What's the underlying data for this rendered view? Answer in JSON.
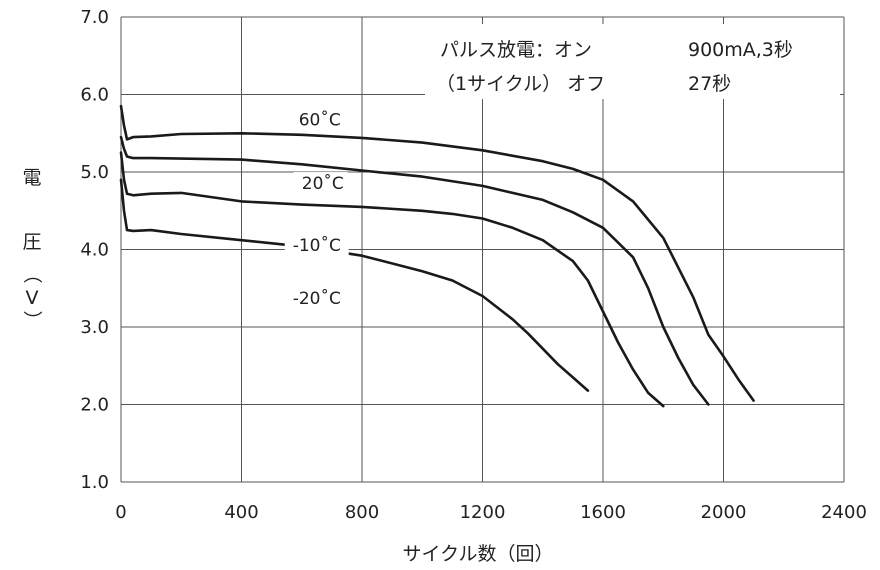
{
  "chart_data": {
    "type": "line",
    "xlabel": "サイクル数（回）",
    "ylabel": "電圧（V）",
    "ylabel_chars": [
      "電",
      "圧",
      "（",
      "V",
      "）"
    ],
    "xlim": [
      0,
      2400
    ],
    "ylim": [
      1.0,
      7.0
    ],
    "x_ticks": [
      "0",
      "400",
      "800",
      "1200",
      "1600",
      "2000",
      "2400"
    ],
    "y_ticks": [
      "1.0",
      "2.0",
      "3.0",
      "4.0",
      "5.0",
      "6.0",
      "7.0"
    ],
    "grid": true,
    "annotation": {
      "line1_label": "パルス放電：オン",
      "line1_value": "900mA,3秒",
      "line2_label": "（1サイクル） オフ",
      "line2_value": "27秒"
    },
    "series": [
      {
        "name": "60˚C",
        "x": [
          0,
          10,
          20,
          40,
          100,
          200,
          400,
          600,
          800,
          1000,
          1200,
          1400,
          1500,
          1600,
          1700,
          1800,
          1900,
          1950,
          2000,
          2050,
          2100
        ],
        "y": [
          5.85,
          5.6,
          5.42,
          5.45,
          5.46,
          5.49,
          5.5,
          5.48,
          5.44,
          5.38,
          5.28,
          5.14,
          5.04,
          4.9,
          4.62,
          4.15,
          3.38,
          2.9,
          2.62,
          2.32,
          2.05
        ]
      },
      {
        "name": "20˚C",
        "x": [
          0,
          10,
          20,
          40,
          100,
          400,
          600,
          800,
          1000,
          1200,
          1400,
          1500,
          1600,
          1700,
          1750,
          1800,
          1850,
          1900,
          1950
        ],
        "y": [
          5.45,
          5.3,
          5.2,
          5.18,
          5.18,
          5.16,
          5.1,
          5.02,
          4.94,
          4.82,
          4.64,
          4.48,
          4.28,
          3.9,
          3.5,
          3.0,
          2.6,
          2.25,
          2.0
        ]
      },
      {
        "name": "-10˚C",
        "x": [
          0,
          10,
          20,
          40,
          100,
          200,
          400,
          600,
          800,
          1000,
          1100,
          1200,
          1300,
          1400,
          1500,
          1550,
          1600,
          1650,
          1700,
          1750,
          1800
        ],
        "y": [
          5.25,
          4.9,
          4.72,
          4.7,
          4.72,
          4.73,
          4.62,
          4.58,
          4.55,
          4.5,
          4.46,
          4.4,
          4.28,
          4.12,
          3.85,
          3.6,
          3.2,
          2.8,
          2.45,
          2.15,
          1.98
        ]
      },
      {
        "name": "-20˚C",
        "x": [
          0,
          10,
          20,
          40,
          100,
          200,
          400,
          600,
          800,
          1000,
          1100,
          1200,
          1300,
          1350,
          1400,
          1450,
          1500,
          1550
        ],
        "y": [
          4.9,
          4.5,
          4.25,
          4.24,
          4.25,
          4.2,
          4.12,
          4.04,
          3.92,
          3.72,
          3.6,
          3.4,
          3.1,
          2.92,
          2.72,
          2.52,
          2.35,
          2.18
        ]
      }
    ]
  }
}
